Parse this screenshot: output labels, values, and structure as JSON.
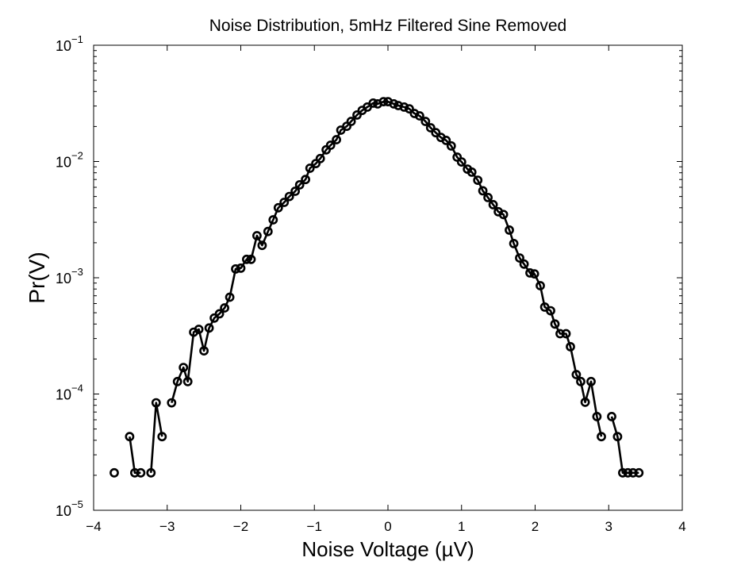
{
  "chart_data": {
    "type": "line",
    "title": "Noise Distribution, 5mHz Filtered Sine Removed",
    "xlabel": "Noise Voltage (µV)",
    "ylabel": "Pr(V)",
    "xlim": [
      -4,
      4
    ],
    "ylim": [
      1e-05,
      0.1
    ],
    "yscale": "log",
    "grid": false,
    "legend": "none",
    "marker": "circle",
    "color": "#000000",
    "x_ticks": [
      {
        "value": -4,
        "label": "−4"
      },
      {
        "value": -3,
        "label": "−3"
      },
      {
        "value": -2,
        "label": "−2"
      },
      {
        "value": -1,
        "label": "−1"
      },
      {
        "value": 0,
        "label": "0"
      },
      {
        "value": 1,
        "label": "1"
      },
      {
        "value": 2,
        "label": "2"
      },
      {
        "value": 3,
        "label": "3"
      },
      {
        "value": 4,
        "label": "4"
      }
    ],
    "y_ticks": [
      {
        "exp": -1,
        "base": "10",
        "sup": "−1"
      },
      {
        "exp": -2,
        "base": "10",
        "sup": "−2"
      },
      {
        "exp": -3,
        "base": "10",
        "sup": "−3"
      },
      {
        "exp": -4,
        "base": "10",
        "sup": "−4"
      },
      {
        "exp": -5,
        "base": "10",
        "sup": "−5"
      }
    ],
    "segments": [
      [
        [
          -3.72,
          2.1e-05
        ]
      ],
      [
        [
          -3.51,
          4.3e-05
        ],
        [
          -3.44,
          2.1e-05
        ],
        [
          -3.36,
          2.1e-05
        ]
      ],
      [
        [
          -3.22,
          2.1e-05
        ],
        [
          -3.15,
          8.4e-05
        ],
        [
          -3.07,
          4.3e-05
        ]
      ],
      [
        [
          -2.94,
          8.4e-05
        ],
        [
          -2.86,
          0.000128
        ],
        [
          -2.78,
          0.000169
        ],
        [
          -2.72,
          0.000128
        ],
        [
          -2.64,
          0.00034
        ],
        [
          -2.57,
          0.00036
        ],
        [
          -2.5,
          0.000235
        ],
        [
          -2.43,
          0.00037
        ],
        [
          -2.36,
          0.00045
        ],
        [
          -2.29,
          0.00049
        ],
        [
          -2.22,
          0.00055
        ],
        [
          -2.15,
          0.00068
        ],
        [
          -2.07,
          0.00119
        ],
        [
          -2.0,
          0.00121
        ],
        [
          -1.92,
          0.00144
        ],
        [
          -1.86,
          0.00144
        ],
        [
          -1.78,
          0.0023
        ],
        [
          -1.71,
          0.0019
        ],
        [
          -1.63,
          0.0025
        ],
        [
          -1.56,
          0.00315
        ],
        [
          -1.49,
          0.004
        ],
        [
          -1.41,
          0.00445
        ],
        [
          -1.34,
          0.005
        ],
        [
          -1.26,
          0.00555
        ],
        [
          -1.2,
          0.0063
        ],
        [
          -1.12,
          0.007
        ],
        [
          -1.06,
          0.00875
        ],
        [
          -0.98,
          0.0096
        ],
        [
          -0.92,
          0.0106
        ],
        [
          -0.84,
          0.0126
        ],
        [
          -0.78,
          0.0138
        ],
        [
          -0.7,
          0.0154
        ],
        [
          -0.64,
          0.0186
        ],
        [
          -0.56,
          0.0201
        ],
        [
          -0.5,
          0.0221
        ],
        [
          -0.42,
          0.0251
        ],
        [
          -0.35,
          0.0275
        ],
        [
          -0.28,
          0.0294
        ],
        [
          -0.2,
          0.0318
        ],
        [
          -0.14,
          0.0313
        ],
        [
          -0.06,
          0.0327
        ],
        [
          0.0,
          0.0327
        ],
        [
          0.08,
          0.0313
        ],
        [
          0.14,
          0.0303
        ],
        [
          0.22,
          0.0294
        ],
        [
          0.29,
          0.0284
        ],
        [
          0.36,
          0.0259
        ],
        [
          0.43,
          0.0247
        ],
        [
          0.51,
          0.0221
        ],
        [
          0.58,
          0.0195
        ],
        [
          0.65,
          0.0177
        ],
        [
          0.72,
          0.0161
        ],
        [
          0.79,
          0.0152
        ],
        [
          0.86,
          0.0136
        ],
        [
          0.94,
          0.0109
        ],
        [
          1.0,
          0.0099
        ],
        [
          1.08,
          0.0086
        ],
        [
          1.14,
          0.0081
        ],
        [
          1.22,
          0.0069
        ],
        [
          1.29,
          0.0056
        ],
        [
          1.36,
          0.0049
        ],
        [
          1.43,
          0.00425
        ],
        [
          1.5,
          0.0037
        ],
        [
          1.57,
          0.0035
        ],
        [
          1.65,
          0.00257
        ],
        [
          1.71,
          0.00197
        ],
        [
          1.79,
          0.00148
        ],
        [
          1.85,
          0.00131
        ],
        [
          1.93,
          0.0011
        ],
        [
          1.99,
          0.00108
        ],
        [
          2.07,
          0.000855
        ],
        [
          2.13,
          0.00056
        ],
        [
          2.21,
          0.00052
        ],
        [
          2.27,
          0.0004
        ],
        [
          2.34,
          0.00033
        ],
        [
          2.42,
          0.00033
        ],
        [
          2.48,
          0.000255
        ],
        [
          2.56,
          0.000147
        ],
        [
          2.62,
          0.000128
        ],
        [
          2.68,
          8.5e-05
        ],
        [
          2.76,
          0.000128
        ],
        [
          2.84,
          6.4e-05
        ],
        [
          2.9,
          4.3e-05
        ]
      ],
      [
        [
          3.04,
          6.4e-05
        ],
        [
          3.12,
          4.3e-05
        ],
        [
          3.19,
          2.1e-05
        ],
        [
          3.26,
          2.1e-05
        ],
        [
          3.33,
          2.1e-05
        ],
        [
          3.41,
          2.1e-05
        ]
      ]
    ]
  }
}
